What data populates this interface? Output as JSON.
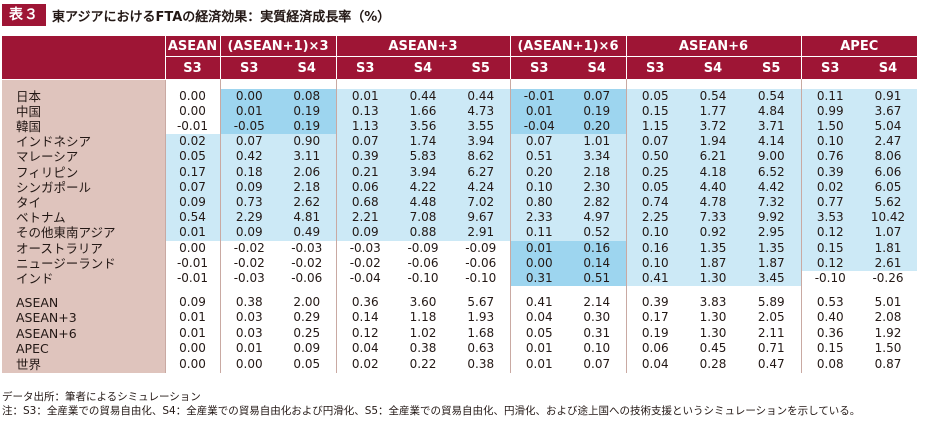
{
  "title": {
    "tag": "表３",
    "text": "東アジアにおけるFTAの経済効果：実質経済成長率（%）"
  },
  "header": {
    "groups": [
      {
        "label": "ASEAN",
        "span": 1
      },
      {
        "label": "(ASEAN+1)×3",
        "span": 2
      },
      {
        "label": "ASEAN+3",
        "span": 3
      },
      {
        "label": "(ASEAN+1)×6",
        "span": 2
      },
      {
        "label": "ASEAN+6",
        "span": 3
      },
      {
        "label": "APEC",
        "span": 2
      }
    ],
    "scenarios": [
      "S3",
      "S3",
      "S4",
      "S3",
      "S4",
      "S5",
      "S3",
      "S4",
      "S3",
      "S4",
      "S5",
      "S3",
      "S4"
    ]
  },
  "rows_countries": [
    {
      "name": "日本",
      "values": [
        "0.00",
        "0.00",
        "0.08",
        "0.01",
        "0.44",
        "0.44",
        "-0.01",
        "0.07",
        "0.05",
        "0.54",
        "0.54",
        "0.11",
        "0.91"
      ]
    },
    {
      "name": "中国",
      "values": [
        "0.00",
        "0.01",
        "0.19",
        "0.13",
        "1.66",
        "4.73",
        "0.01",
        "0.19",
        "0.15",
        "1.77",
        "4.84",
        "0.99",
        "3.67"
      ]
    },
    {
      "name": "韓国",
      "values": [
        "-0.01",
        "-0.05",
        "0.19",
        "1.13",
        "3.56",
        "3.55",
        "-0.04",
        "0.20",
        "1.15",
        "3.72",
        "3.71",
        "1.50",
        "5.04"
      ]
    },
    {
      "name": "インドネシア",
      "values": [
        "0.02",
        "0.07",
        "0.90",
        "0.07",
        "1.74",
        "3.94",
        "0.07",
        "1.01",
        "0.07",
        "1.94",
        "4.14",
        "0.10",
        "2.47"
      ]
    },
    {
      "name": "マレーシア",
      "values": [
        "0.05",
        "0.42",
        "3.11",
        "0.39",
        "5.83",
        "8.62",
        "0.51",
        "3.34",
        "0.50",
        "6.21",
        "9.00",
        "0.76",
        "8.06"
      ]
    },
    {
      "name": "フィリピン",
      "values": [
        "0.17",
        "0.18",
        "2.06",
        "0.21",
        "3.94",
        "6.27",
        "0.20",
        "2.18",
        "0.25",
        "4.18",
        "6.52",
        "0.39",
        "6.06"
      ]
    },
    {
      "name": "シンガポール",
      "values": [
        "0.07",
        "0.09",
        "2.18",
        "0.06",
        "4.22",
        "4.24",
        "0.10",
        "2.30",
        "0.05",
        "4.40",
        "4.42",
        "0.02",
        "6.05"
      ]
    },
    {
      "name": "タイ",
      "values": [
        "0.09",
        "0.73",
        "2.62",
        "0.68",
        "4.48",
        "7.02",
        "0.80",
        "2.82",
        "0.74",
        "4.78",
        "7.32",
        "0.77",
        "5.62"
      ]
    },
    {
      "name": "ベトナム",
      "values": [
        "0.54",
        "2.29",
        "4.81",
        "2.21",
        "7.08",
        "9.67",
        "2.33",
        "4.97",
        "2.25",
        "7.33",
        "9.92",
        "3.53",
        "10.42"
      ]
    },
    {
      "name": "その他東南アジア",
      "values": [
        "0.01",
        "0.09",
        "0.49",
        "0.09",
        "0.88",
        "2.91",
        "0.11",
        "0.52",
        "0.10",
        "0.92",
        "2.95",
        "0.12",
        "1.07"
      ]
    },
    {
      "name": "オーストラリア",
      "values": [
        "0.00",
        "-0.02",
        "-0.03",
        "-0.03",
        "-0.09",
        "-0.09",
        "0.01",
        "0.16",
        "0.16",
        "1.35",
        "1.35",
        "0.15",
        "1.81"
      ]
    },
    {
      "name": "ニュージーランド",
      "values": [
        "-0.01",
        "-0.02",
        "-0.02",
        "-0.02",
        "-0.06",
        "-0.06",
        "0.00",
        "0.14",
        "0.10",
        "1.87",
        "1.87",
        "0.12",
        "2.61"
      ]
    },
    {
      "name": "インド",
      "values": [
        "-0.01",
        "-0.03",
        "-0.06",
        "-0.04",
        "-0.10",
        "-0.10",
        "0.31",
        "0.51",
        "0.41",
        "1.30",
        "3.45",
        "-0.10",
        "-0.26"
      ]
    }
  ],
  "rows_regions": [
    {
      "name": "ASEAN",
      "values": [
        "0.09",
        "0.38",
        "2.00",
        "0.36",
        "3.60",
        "5.67",
        "0.41",
        "2.14",
        "0.39",
        "3.83",
        "5.89",
        "0.53",
        "5.01"
      ]
    },
    {
      "name": "ASEAN+3",
      "values": [
        "0.01",
        "0.03",
        "0.29",
        "0.14",
        "1.18",
        "1.93",
        "0.04",
        "0.30",
        "0.17",
        "1.30",
        "2.05",
        "0.40",
        "2.08"
      ]
    },
    {
      "name": "ASEAN+6",
      "values": [
        "0.01",
        "0.03",
        "0.25",
        "0.12",
        "1.02",
        "1.68",
        "0.05",
        "0.31",
        "0.19",
        "1.30",
        "2.11",
        "0.36",
        "1.92"
      ]
    },
    {
      "name": "APEC",
      "values": [
        "0.00",
        "0.01",
        "0.09",
        "0.04",
        "0.38",
        "0.63",
        "0.01",
        "0.10",
        "0.06",
        "0.45",
        "0.71",
        "0.15",
        "1.50"
      ]
    },
    {
      "name": "世界",
      "values": [
        "0.00",
        "0.00",
        "0.05",
        "0.02",
        "0.22",
        "0.38",
        "0.01",
        "0.07",
        "0.04",
        "0.28",
        "0.47",
        "0.08",
        "0.87"
      ]
    }
  ],
  "highlight_matrix": [
    [
      0,
      2,
      2,
      1,
      1,
      1,
      2,
      2,
      1,
      1,
      1,
      1,
      1
    ],
    [
      0,
      2,
      2,
      1,
      1,
      1,
      2,
      2,
      1,
      1,
      1,
      1,
      1
    ],
    [
      0,
      2,
      2,
      1,
      1,
      1,
      2,
      2,
      1,
      1,
      1,
      1,
      1
    ],
    [
      1,
      1,
      1,
      1,
      1,
      1,
      1,
      1,
      1,
      1,
      1,
      1,
      1
    ],
    [
      1,
      1,
      1,
      1,
      1,
      1,
      1,
      1,
      1,
      1,
      1,
      1,
      1
    ],
    [
      1,
      1,
      1,
      1,
      1,
      1,
      1,
      1,
      1,
      1,
      1,
      1,
      1
    ],
    [
      1,
      1,
      1,
      1,
      1,
      1,
      1,
      1,
      1,
      1,
      1,
      1,
      1
    ],
    [
      1,
      1,
      1,
      1,
      1,
      1,
      1,
      1,
      1,
      1,
      1,
      1,
      1
    ],
    [
      1,
      1,
      1,
      1,
      1,
      1,
      1,
      1,
      1,
      1,
      1,
      1,
      1
    ],
    [
      1,
      1,
      1,
      1,
      1,
      1,
      1,
      1,
      1,
      1,
      1,
      1,
      1
    ],
    [
      0,
      0,
      0,
      0,
      0,
      0,
      2,
      2,
      1,
      1,
      1,
      1,
      1
    ],
    [
      0,
      0,
      0,
      0,
      0,
      0,
      2,
      2,
      1,
      1,
      1,
      1,
      1
    ],
    [
      0,
      0,
      0,
      0,
      0,
      0,
      2,
      2,
      1,
      1,
      1,
      0,
      0
    ]
  ],
  "colors": {
    "header_bg": "#9e1535",
    "label_bg": "#dfc4bd",
    "highlight_light": "#cce9f6",
    "highlight_dark": "#9dd5ef"
  },
  "notes": {
    "source": "データ出所：筆者によるシミュレーション",
    "note": "注：S3：全産業での貿易自由化、S4：全産業での貿易自由化および円滑化、S5：全産業での貿易自由化、円滑化、および途上国への技術支援というシミュレーションを示している。"
  }
}
